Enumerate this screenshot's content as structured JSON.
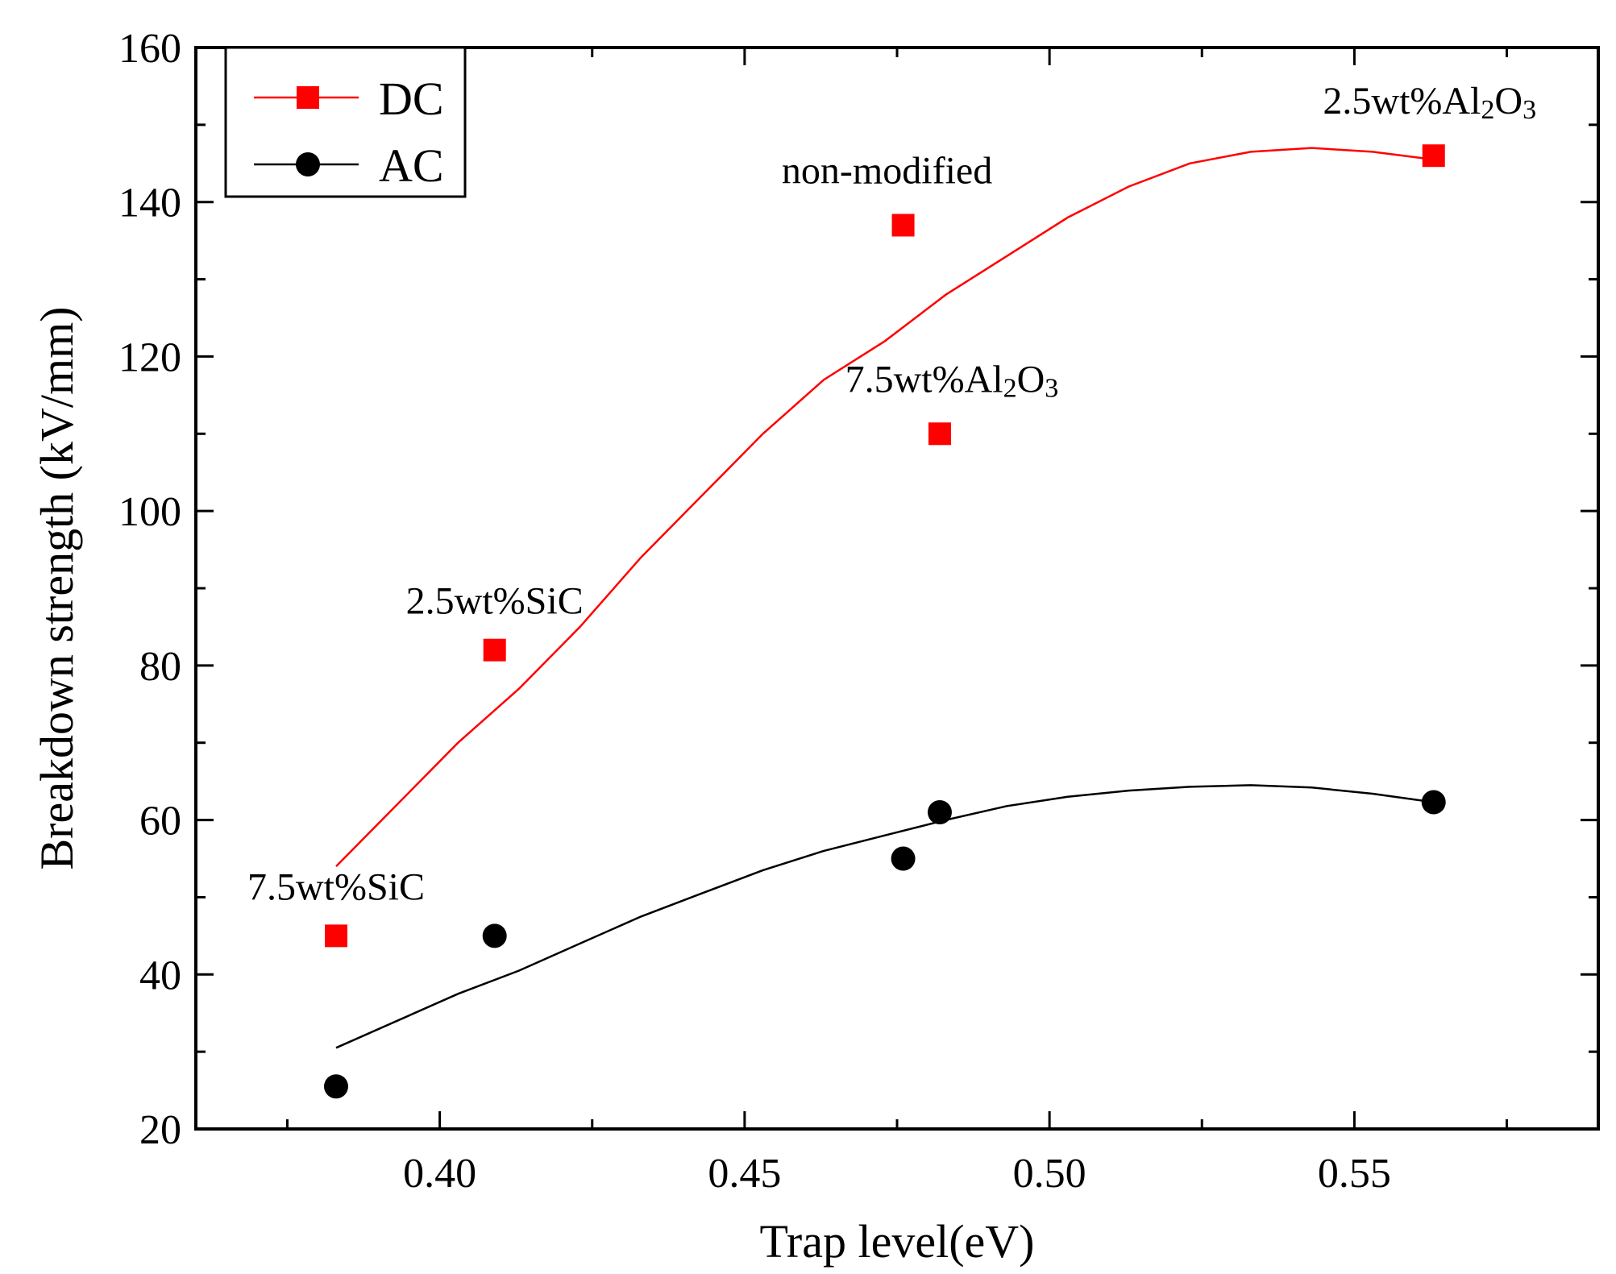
{
  "chart_data": {
    "type": "scatter",
    "title": "",
    "xlabel": "Trap level(eV)",
    "ylabel": "Breakdown strength (kV/mm)",
    "xlim": [
      0.36,
      0.59
    ],
    "ylim": [
      20,
      160
    ],
    "x_ticks": [
      0.4,
      0.45,
      0.5,
      0.55
    ],
    "x_tick_labels": [
      "0.40",
      "0.45",
      "0.50",
      "0.55"
    ],
    "x_minor_ticks": [
      0.375,
      0.425,
      0.475,
      0.525,
      0.575
    ],
    "y_ticks": [
      20,
      40,
      60,
      80,
      100,
      120,
      140,
      160
    ],
    "y_tick_labels": [
      "20",
      "40",
      "60",
      "80",
      "100",
      "120",
      "140",
      "160"
    ],
    "y_minor_ticks": [
      30,
      50,
      70,
      90,
      110,
      130,
      150
    ],
    "legend_position": "top-left",
    "series": [
      {
        "name": "DC",
        "color": "#ff0000",
        "marker": "square",
        "x": [
          0.383,
          0.409,
          0.476,
          0.482,
          0.563
        ],
        "y": [
          45,
          82,
          137,
          110,
          146
        ],
        "fit": {
          "x": [
            0.383,
            0.393,
            0.403,
            0.413,
            0.423,
            0.433,
            0.443,
            0.453,
            0.463,
            0.473,
            0.483,
            0.493,
            0.503,
            0.513,
            0.523,
            0.533,
            0.543,
            0.553,
            0.563
          ],
          "y": [
            54,
            62,
            70,
            77,
            85,
            94,
            102,
            110,
            117,
            122,
            128,
            133,
            138,
            142,
            145,
            146.5,
            147,
            146.5,
            145.5
          ]
        }
      },
      {
        "name": "AC",
        "color": "#000000",
        "marker": "circle",
        "x": [
          0.383,
          0.409,
          0.476,
          0.482,
          0.563
        ],
        "y": [
          25.5,
          45,
          55,
          61,
          62.3
        ],
        "fit": {
          "x": [
            0.383,
            0.393,
            0.403,
            0.413,
            0.423,
            0.433,
            0.443,
            0.453,
            0.463,
            0.473,
            0.483,
            0.493,
            0.503,
            0.513,
            0.523,
            0.533,
            0.543,
            0.553,
            0.563
          ],
          "y": [
            30.5,
            34,
            37.5,
            40.5,
            44,
            47.5,
            50.5,
            53.5,
            56,
            58,
            60,
            61.8,
            63,
            63.8,
            64.3,
            64.5,
            64.2,
            63.4,
            62.3
          ]
        }
      }
    ],
    "annotations": [
      {
        "id": "7.5sic",
        "x": 0.383,
        "y": 45,
        "text": "7.5wt%SiC"
      },
      {
        "id": "2.5sic",
        "x": 0.409,
        "y": 82,
        "text": "2.5wt%SiC"
      },
      {
        "id": "nonmod",
        "x": 0.476,
        "y": 137,
        "text": "non-modified"
      },
      {
        "id": "7.5al",
        "x": 0.482,
        "y": 110,
        "text_parts": [
          "7.5wt%Al",
          "2",
          "O",
          "3"
        ]
      },
      {
        "id": "2.5al",
        "x": 0.563,
        "y": 146,
        "text_parts": [
          "2.5wt%Al",
          "2",
          "O",
          "3"
        ]
      }
    ]
  }
}
